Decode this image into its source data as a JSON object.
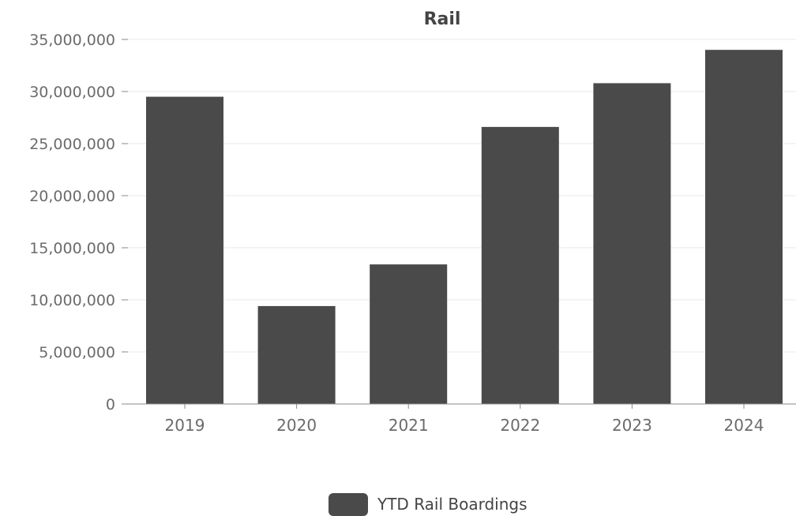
{
  "chart_data": {
    "type": "bar",
    "title": "Rail",
    "xlabel": "",
    "ylabel": "",
    "categories": [
      "2019",
      "2020",
      "2021",
      "2022",
      "2023",
      "2024"
    ],
    "series": [
      {
        "name": "YTD Rail Boardings",
        "color": "#4a4a4a",
        "values": [
          29500000,
          9400000,
          13400000,
          26600000,
          30800000,
          34000000
        ]
      }
    ],
    "ylim": [
      0,
      35000000
    ],
    "yticks": [
      0,
      5000000,
      10000000,
      15000000,
      20000000,
      25000000,
      30000000,
      35000000
    ],
    "ytick_labels": [
      "0",
      "5,000,000",
      "10,000,000",
      "15,000,000",
      "20,000,000",
      "25,000,000",
      "30,000,000",
      "35,000,000"
    ],
    "grid": true,
    "legend_position": "bottom-center"
  }
}
